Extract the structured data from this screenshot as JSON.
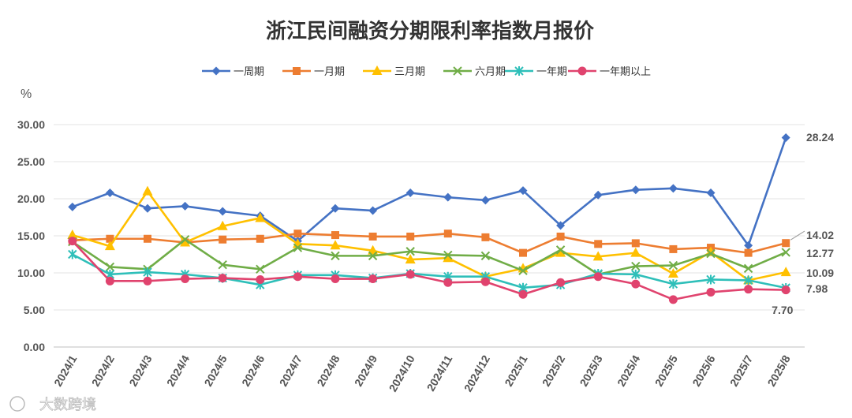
{
  "chart_data": {
    "type": "line",
    "title": "浙江民间融资分期限利率指数月报价",
    "ylabel": "%",
    "ylim": [
      0,
      30
    ],
    "yticks": [
      "0.00",
      "5.00",
      "10.00",
      "15.00",
      "20.00",
      "25.00",
      "30.00"
    ],
    "grid": true,
    "legend_position": "top",
    "categories": [
      "2024/1",
      "2024/2",
      "2024/3",
      "2024/4",
      "2024/5",
      "2024/6",
      "2024/7",
      "2024/8",
      "2024/9",
      "2024/10",
      "2024/11",
      "2024/12",
      "2025/1",
      "2025/2",
      "2025/3",
      "2025/4",
      "2025/5",
      "2025/6",
      "2025/7",
      "2025/8"
    ],
    "series": [
      {
        "name": "一周期",
        "color": "#4472C4",
        "marker": "diamond",
        "values": [
          18.9,
          20.8,
          18.7,
          19.0,
          18.3,
          17.7,
          14.3,
          18.7,
          18.4,
          20.8,
          20.2,
          19.8,
          21.1,
          16.4,
          20.5,
          21.2,
          21.4,
          20.8,
          13.7,
          28.24
        ]
      },
      {
        "name": "一月期",
        "color": "#ED7D31",
        "marker": "square",
        "values": [
          14.4,
          14.6,
          14.6,
          14.1,
          14.5,
          14.6,
          15.3,
          15.1,
          14.9,
          14.9,
          15.3,
          14.8,
          12.7,
          14.9,
          13.9,
          14.0,
          13.2,
          13.4,
          12.7,
          14.02
        ]
      },
      {
        "name": "三月期",
        "color": "#FFC000",
        "marker": "triangle",
        "values": [
          15.1,
          13.6,
          21.0,
          14.1,
          16.3,
          17.4,
          13.9,
          13.7,
          13.0,
          11.8,
          12.0,
          9.5,
          10.6,
          12.7,
          12.2,
          12.7,
          9.9,
          12.8,
          9.0,
          10.09
        ]
      },
      {
        "name": "六月期",
        "color": "#70AD47",
        "marker": "x",
        "values": [
          14.2,
          10.8,
          10.5,
          14.5,
          11.1,
          10.5,
          13.4,
          12.3,
          12.3,
          12.9,
          12.4,
          12.3,
          10.3,
          13.1,
          9.8,
          10.9,
          11.0,
          12.6,
          10.6,
          12.77
        ]
      },
      {
        "name": "一年期",
        "color": "#2EBFB9",
        "marker": "star",
        "values": [
          12.5,
          9.8,
          10.1,
          9.8,
          9.3,
          8.4,
          9.7,
          9.7,
          9.3,
          9.9,
          9.5,
          9.5,
          8.0,
          8.4,
          9.9,
          9.8,
          8.5,
          9.1,
          9.0,
          7.98
        ]
      },
      {
        "name": "一年期以上",
        "color": "#E0436E",
        "marker": "circle",
        "values": [
          14.3,
          8.9,
          8.9,
          9.2,
          9.3,
          9.1,
          9.5,
          9.2,
          9.2,
          9.8,
          8.7,
          8.8,
          7.1,
          8.7,
          9.5,
          8.5,
          6.4,
          7.4,
          7.8,
          7.7
        ]
      }
    ],
    "end_labels": [
      {
        "text": "28.24",
        "value": 28.24,
        "color": "#555555"
      },
      {
        "text": "14.02",
        "value": 14.02,
        "color": "#555555"
      },
      {
        "text": "12.77",
        "value": 12.77,
        "color": "#555555"
      },
      {
        "text": "10.09",
        "value": 10.09,
        "color": "#555555"
      },
      {
        "text": "7.98",
        "value": 7.98,
        "color": "#555555"
      },
      {
        "text": "7.70",
        "value": 7.7,
        "color": "#555555"
      }
    ]
  },
  "watermark": "大数跨境"
}
